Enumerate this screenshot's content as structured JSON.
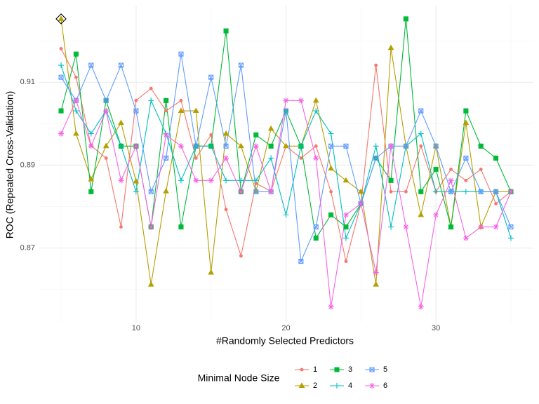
{
  "chart_data": {
    "type": "line",
    "x_label": "#Randomly Selected Predictors",
    "y_label": "ROC (Repeated Cross-Validation)",
    "legend_title": "Minimal Node Size",
    "x": [
      5,
      6,
      7,
      8,
      9,
      10,
      11,
      12,
      13,
      14,
      15,
      16,
      17,
      18,
      19,
      20,
      21,
      22,
      23,
      24,
      25,
      26,
      27,
      28,
      29,
      30,
      31,
      32,
      33,
      34,
      35
    ],
    "series": [
      {
        "name": "1",
        "color": "#F8766D",
        "marker": "circle",
        "values": [
          0.9181,
          0.9112,
          0.8947,
          0.8917,
          0.8751,
          0.9056,
          0.9085,
          0.9031,
          0.9056,
          0.8917,
          0.8973,
          0.8793,
          0.8681,
          0.8856,
          0.8837,
          0.8946,
          0.8917,
          0.8946,
          0.8836,
          0.8668,
          0.8807,
          0.9141,
          0.8836,
          0.8836,
          0.8946,
          0.8836,
          0.889,
          0.8863,
          0.889,
          0.8807,
          0.8836
        ]
      },
      {
        "name": "2",
        "color": "#B79F00",
        "marker": "triangle",
        "values": [
          0.9253,
          0.8976,
          0.8866,
          0.8946,
          0.9002,
          0.8861,
          0.8612,
          0.8837,
          0.9031,
          0.9031,
          0.8641,
          0.8976,
          0.8946,
          0.8837,
          0.8988,
          0.8946,
          0.8946,
          0.9056,
          0.8892,
          0.8863,
          0.8836,
          0.8612,
          0.9183,
          0.8946,
          0.878,
          0.8946,
          0.8751,
          0.9002,
          0.8751,
          0.8836,
          0.8836
        ]
      },
      {
        "name": "3",
        "color": "#00BA38",
        "marker": "square",
        "values": [
          0.9031,
          0.9168,
          0.8836,
          0.9056,
          0.8946,
          0.8946,
          0.8751,
          0.9056,
          0.8751,
          0.8946,
          0.8946,
          0.9224,
          0.8836,
          0.8973,
          0.8946,
          0.9031,
          0.8946,
          0.8724,
          0.878,
          0.8751,
          0.8807,
          0.8917,
          0.8863,
          0.9253,
          0.8836,
          0.889,
          0.8751,
          0.9031,
          0.8946,
          0.8917,
          0.8836
        ]
      },
      {
        "name": "4",
        "color": "#00BFC4",
        "marker": "plus",
        "values": [
          0.9141,
          0.9031,
          0.8976,
          0.9031,
          0.8946,
          0.8836,
          0.9056,
          0.8976,
          0.8863,
          0.8946,
          0.8946,
          0.8863,
          0.8863,
          0.8863,
          0.8917,
          0.878,
          0.8946,
          0.9031,
          0.8976,
          0.8724,
          0.8807,
          0.8946,
          0.8751,
          0.8946,
          0.8976,
          0.8836,
          0.8836,
          0.8836,
          0.8836,
          0.8836,
          0.8724
        ]
      },
      {
        "name": "5",
        "color": "#619CFF",
        "marker": "square-x",
        "values": [
          0.9112,
          0.9056,
          0.9141,
          0.9056,
          0.9141,
          0.9031,
          0.8836,
          0.8917,
          0.9168,
          0.8946,
          0.9112,
          0.8946,
          0.9141,
          0.8836,
          0.8836,
          0.9031,
          0.8668,
          0.8751,
          0.8946,
          0.8946,
          0.8807,
          0.8917,
          0.8946,
          0.8946,
          0.9031,
          0.8946,
          0.8836,
          0.8917,
          0.8836,
          0.8836,
          0.8751
        ]
      },
      {
        "name": "6",
        "color": "#F564E3",
        "marker": "asterisk",
        "values": [
          0.8976,
          0.9056,
          0.8946,
          0.9031,
          0.8863,
          0.8946,
          0.8751,
          0.8973,
          0.8946,
          0.8863,
          0.8863,
          0.8917,
          0.8836,
          0.8946,
          0.8836,
          0.9056,
          0.9056,
          0.8917,
          0.8558,
          0.878,
          0.8807,
          0.8641,
          0.8946,
          0.8751,
          0.8558,
          0.878,
          0.8863,
          0.8724,
          0.8751,
          0.8751,
          0.8836
        ]
      }
    ],
    "highlight": {
      "x": 5,
      "y": 0.9253
    },
    "xlim": [
      3.5,
      36.5
    ],
    "xticks": [
      10,
      20,
      30
    ],
    "x_minor_ticks": [
      5,
      15,
      25,
      35
    ],
    "ylim": [
      0.852,
      0.9285
    ],
    "yticks": [
      0.87,
      0.89,
      0.91
    ],
    "y_minor_ticks": [
      0.86,
      0.88,
      0.9,
      0.92
    ],
    "grid": true,
    "legend_position": "bottom"
  }
}
